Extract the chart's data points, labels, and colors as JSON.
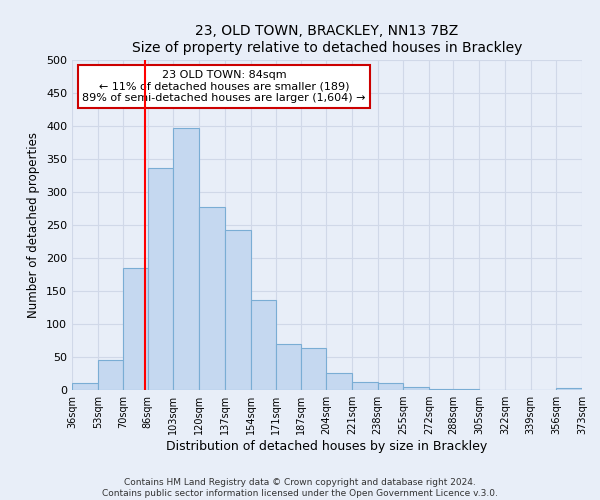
{
  "title": "23, OLD TOWN, BRACKLEY, NN13 7BZ",
  "subtitle": "Size of property relative to detached houses in Brackley",
  "xlabel": "Distribution of detached houses by size in Brackley",
  "ylabel": "Number of detached properties",
  "bin_edges": [
    36,
    53,
    70,
    86,
    103,
    120,
    137,
    154,
    171,
    187,
    204,
    221,
    238,
    255,
    272,
    288,
    305,
    322,
    339,
    356,
    373
  ],
  "bar_heights": [
    10,
    46,
    185,
    337,
    397,
    277,
    242,
    136,
    70,
    63,
    26,
    12,
    10,
    5,
    2,
    2,
    0,
    0,
    0,
    3
  ],
  "bar_color": "#c5d8f0",
  "bar_edge_color": "#7aadd4",
  "red_line_x": 84,
  "annotation_title": "23 OLD TOWN: 84sqm",
  "annotation_line1": "← 11% of detached houses are smaller (189)",
  "annotation_line2": "89% of semi-detached houses are larger (1,604) →",
  "ylim": [
    0,
    500
  ],
  "yticks": [
    0,
    50,
    100,
    150,
    200,
    250,
    300,
    350,
    400,
    450,
    500
  ],
  "tick_labels": [
    "36sqm",
    "53sqm",
    "70sqm",
    "86sqm",
    "103sqm",
    "120sqm",
    "137sqm",
    "154sqm",
    "171sqm",
    "187sqm",
    "204sqm",
    "221sqm",
    "238sqm",
    "255sqm",
    "272sqm",
    "288sqm",
    "305sqm",
    "322sqm",
    "339sqm",
    "356sqm",
    "373sqm"
  ],
  "footer_line1": "Contains HM Land Registry data © Crown copyright and database right 2024.",
  "footer_line2": "Contains public sector information licensed under the Open Government Licence v.3.0.",
  "background_color": "#e8eef8",
  "grid_color": "#d0d8e8",
  "annotation_box_color": "#ffffff",
  "annotation_box_edge": "#cc0000"
}
